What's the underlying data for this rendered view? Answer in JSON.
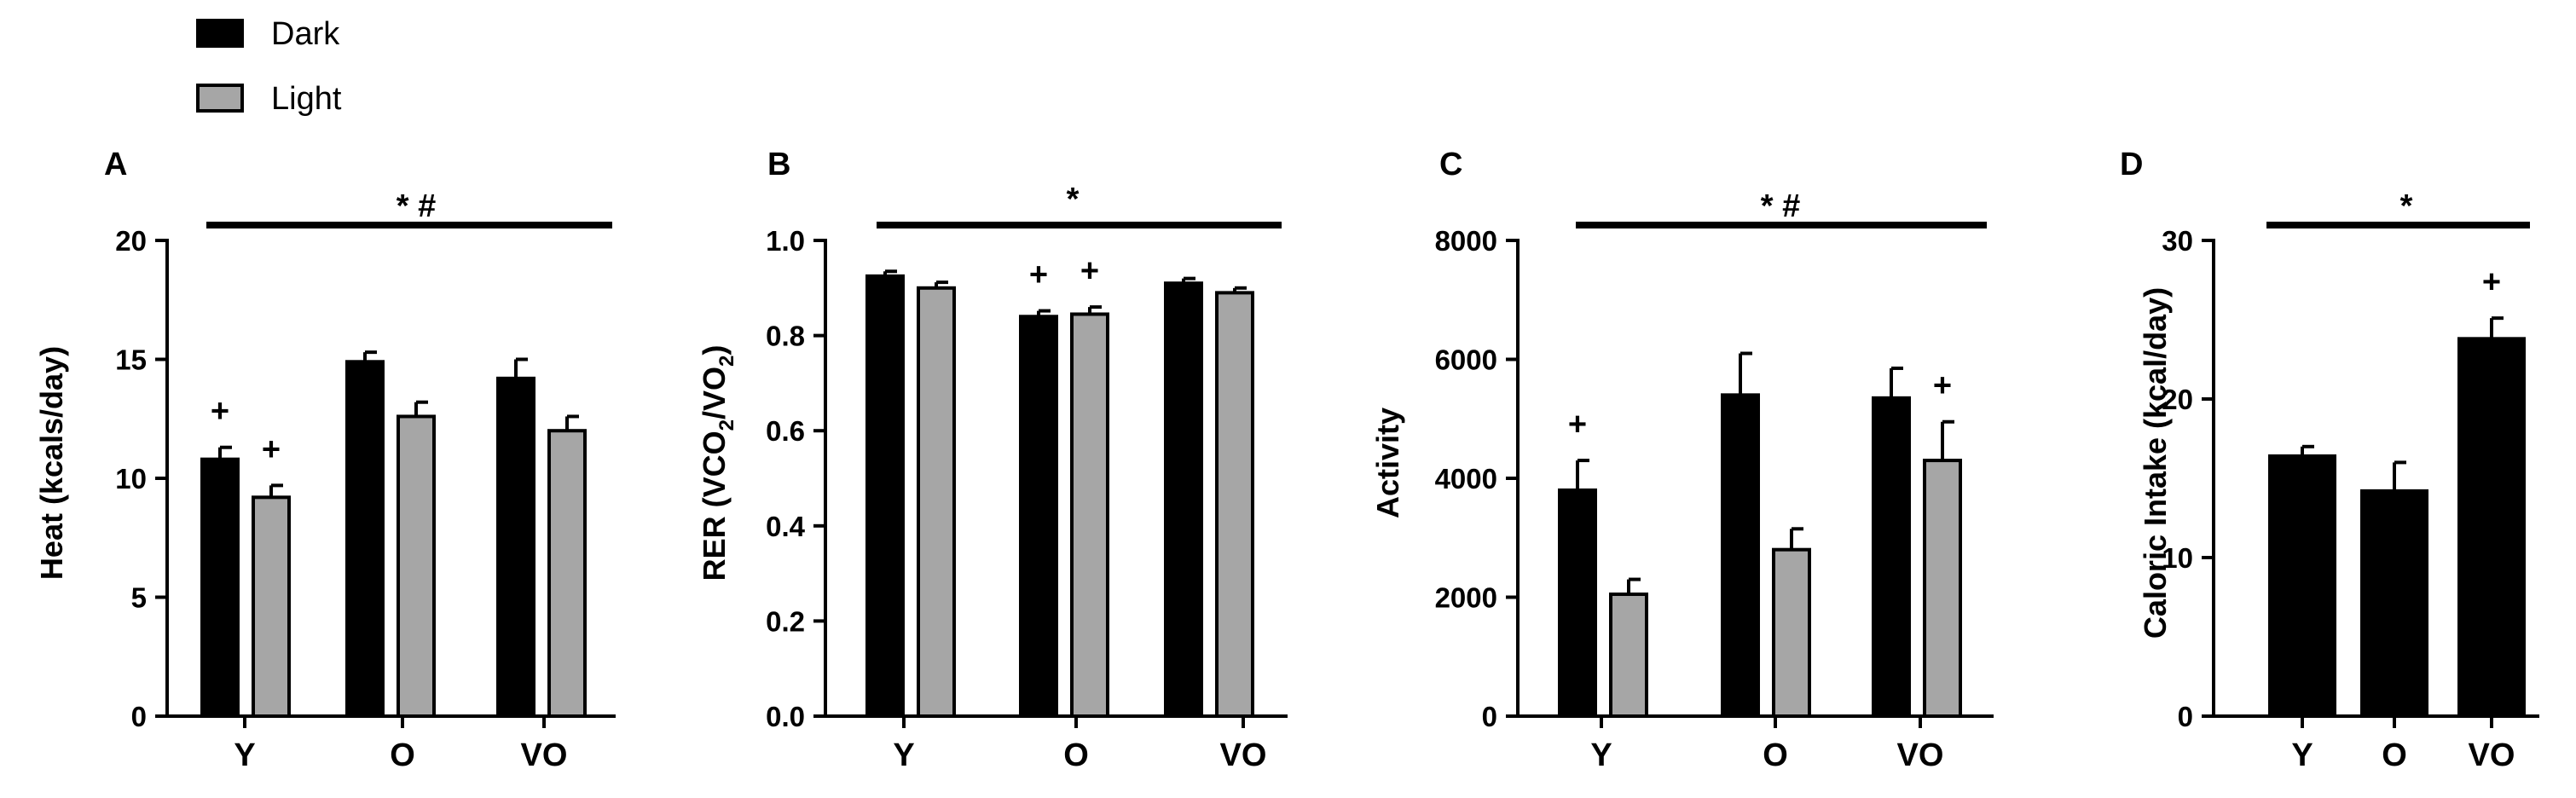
{
  "legend": [
    {
      "label": "Dark",
      "color": "#000000"
    },
    {
      "label": "Light",
      "color": "#a6a6a6"
    }
  ],
  "chart_data": [
    {
      "panel": "A",
      "type": "bar",
      "ylabel": "Heat (kcals/day)",
      "ylim": [
        0,
        20
      ],
      "yticks": [
        "0",
        "5",
        "10",
        "15",
        "20"
      ],
      "categories": [
        "Y",
        "O",
        "VO"
      ],
      "series": [
        {
          "name": "Dark",
          "values": [
            10.8,
            14.9,
            14.2
          ],
          "errors": [
            0.5,
            0.4,
            0.8
          ],
          "marks": [
            "+",
            "",
            ""
          ]
        },
        {
          "name": "Light",
          "values": [
            9.2,
            12.6,
            12.0
          ],
          "errors": [
            0.5,
            0.6,
            0.6
          ],
          "marks": [
            "+",
            "",
            ""
          ]
        }
      ],
      "significance": "* #"
    },
    {
      "panel": "B",
      "type": "bar",
      "ylabel": "RER (VCO2/VO2)",
      "ylim": [
        0,
        1.0
      ],
      "yticks": [
        "0.0",
        "0.2",
        "0.4",
        "0.6",
        "0.8",
        "1.0"
      ],
      "categories": [
        "Y",
        "O",
        "VO"
      ],
      "series": [
        {
          "name": "Dark",
          "values": [
            0.925,
            0.84,
            0.91
          ],
          "errors": [
            0.01,
            0.012,
            0.01
          ],
          "marks": [
            "",
            "+",
            ""
          ]
        },
        {
          "name": "Light",
          "values": [
            0.9,
            0.845,
            0.89
          ],
          "errors": [
            0.012,
            0.015,
            0.01
          ],
          "marks": [
            "",
            "+",
            ""
          ]
        }
      ],
      "significance": "*"
    },
    {
      "panel": "C",
      "type": "bar",
      "ylabel": "Activity",
      "ylim": [
        0,
        8000
      ],
      "yticks": [
        "0",
        "2000",
        "4000",
        "6000",
        "8000"
      ],
      "categories": [
        "Y",
        "O",
        "VO"
      ],
      "series": [
        {
          "name": "Dark",
          "values": [
            3800,
            5400,
            5350
          ],
          "errors": [
            500,
            700,
            500
          ],
          "marks": [
            "+",
            "",
            ""
          ]
        },
        {
          "name": "Light",
          "values": [
            2050,
            2800,
            4300
          ],
          "errors": [
            250,
            350,
            650
          ],
          "marks": [
            "",
            "",
            "+"
          ]
        }
      ],
      "significance": "* #"
    },
    {
      "panel": "D",
      "type": "bar",
      "ylabel": "Caloric Intake (kcal/day)",
      "ylim": [
        0,
        30
      ],
      "yticks": [
        "0",
        "10",
        "20",
        "30"
      ],
      "categories": [
        "Y",
        "O",
        "VO"
      ],
      "series": [
        {
          "name": "Dark",
          "values": [
            16.4,
            14.2,
            23.8
          ],
          "errors": [
            0.6,
            1.8,
            1.3
          ],
          "marks": [
            "",
            "",
            "+"
          ]
        }
      ],
      "significance": "*"
    }
  ]
}
